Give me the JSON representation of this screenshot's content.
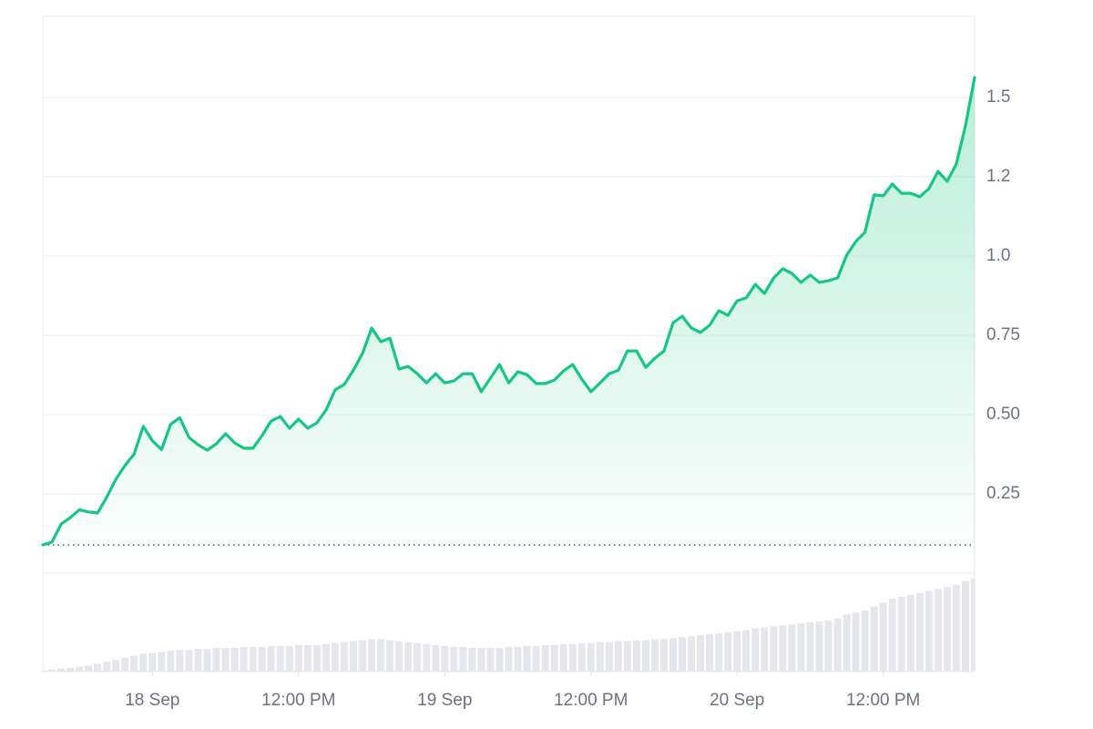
{
  "chart_data": {
    "type": "line",
    "color": "#16c784",
    "x": [
      -9,
      -8.25,
      -7.5,
      -6.75,
      -6,
      -5.25,
      -4.5,
      -3.75,
      -3,
      -2.25,
      -1.5,
      -0.75,
      0,
      0.75,
      1.5,
      2.25,
      3,
      3.75,
      4.5,
      5.25,
      6,
      6.75,
      7.5,
      8.25,
      9,
      9.75,
      10.5,
      11.25,
      12,
      12.75,
      13.5,
      14.25,
      15,
      15.75,
      16.5,
      17.25,
      18,
      18.75,
      19.5,
      20.25,
      21,
      21.75,
      22.5,
      23.25,
      24,
      24.75,
      25.5,
      26.25,
      27,
      27.75,
      28.5,
      29.25,
      30,
      30.75,
      31.5,
      32.25,
      33,
      33.75,
      34.5,
      35.25,
      36,
      36.75,
      37.5,
      38.25,
      39,
      39.75,
      40.5,
      41.25,
      42,
      42.75,
      43.5,
      44.25,
      45,
      45.75,
      46.5,
      47.25,
      48,
      48.75,
      49.5,
      50.25,
      51,
      51.75,
      52.5,
      53.25,
      54,
      54.75,
      55.5,
      56.25,
      57,
      57.75,
      58.5,
      59.25,
      60,
      60.75,
      61.5,
      62.25,
      63,
      63.75,
      64.5,
      65.25,
      66,
      66.75,
      67.5
    ],
    "values": [
      0.089,
      0.098,
      0.155,
      0.175,
      0.2,
      0.193,
      0.19,
      0.24,
      0.296,
      0.34,
      0.376,
      0.463,
      0.417,
      0.39,
      0.47,
      0.49,
      0.428,
      0.405,
      0.388,
      0.408,
      0.44,
      0.411,
      0.394,
      0.394,
      0.434,
      0.48,
      0.494,
      0.457,
      0.486,
      0.457,
      0.474,
      0.514,
      0.578,
      0.595,
      0.64,
      0.693,
      0.773,
      0.73,
      0.741,
      0.644,
      0.652,
      0.629,
      0.6,
      0.629,
      0.6,
      0.606,
      0.629,
      0.629,
      0.572,
      0.615,
      0.658,
      0.6,
      0.635,
      0.626,
      0.598,
      0.598,
      0.609,
      0.638,
      0.658,
      0.612,
      0.572,
      0.6,
      0.629,
      0.64,
      0.701,
      0.701,
      0.649,
      0.678,
      0.701,
      0.79,
      0.81,
      0.773,
      0.759,
      0.782,
      0.828,
      0.813,
      0.859,
      0.868,
      0.911,
      0.882,
      0.931,
      0.96,
      0.945,
      0.917,
      0.94,
      0.917,
      0.922,
      0.931,
      1.003,
      1.046,
      1.075,
      1.193,
      1.19,
      1.227,
      1.198,
      1.198,
      1.187,
      1.213,
      1.267,
      1.236,
      1.29,
      1.411,
      1.563
    ],
    "xlim": [
      -9,
      67.5
    ],
    "xticks": [
      {
        "value": 0,
        "label": "18 Sep"
      },
      {
        "value": 12,
        "label": "12:00 PM"
      },
      {
        "value": 24,
        "label": "19 Sep"
      },
      {
        "value": 36,
        "label": "12:00 PM"
      },
      {
        "value": 48,
        "label": "20 Sep"
      },
      {
        "value": 60,
        "label": "12:00 PM"
      }
    ],
    "ylim": [
      0,
      1.75
    ],
    "yticks": [
      0.25,
      {
        "value": 0.5,
        "label": "0.50"
      },
      0.75,
      {
        "value": 1,
        "label": "1.0"
      },
      {
        "value": 1.25,
        "label": "1.2"
      },
      1.5
    ],
    "grid": true,
    "volume": {
      "color": "#e6e7ec",
      "ylim": [
        0,
        100
      ],
      "values": [
        1,
        2,
        3,
        4,
        5,
        6,
        8,
        10,
        12,
        14,
        16,
        18,
        19,
        20,
        21,
        22,
        22,
        23,
        23,
        24,
        24,
        24,
        25,
        25,
        25,
        26,
        26,
        26,
        27,
        27,
        27,
        28,
        29,
        30,
        31,
        32,
        33,
        33,
        32,
        31,
        30,
        29,
        28,
        27,
        26,
        25,
        25,
        24,
        24,
        24,
        24,
        25,
        25,
        26,
        26,
        27,
        27,
        28,
        28,
        29,
        29,
        30,
        30,
        31,
        31,
        32,
        32,
        33,
        33,
        34,
        35,
        36,
        37,
        38,
        39,
        40,
        41,
        42,
        44,
        45,
        46,
        47,
        48,
        49,
        50,
        51,
        52,
        54,
        58,
        60,
        62,
        66,
        70,
        74,
        76,
        78,
        80,
        82,
        84,
        86,
        88,
        92,
        95
      ]
    }
  }
}
